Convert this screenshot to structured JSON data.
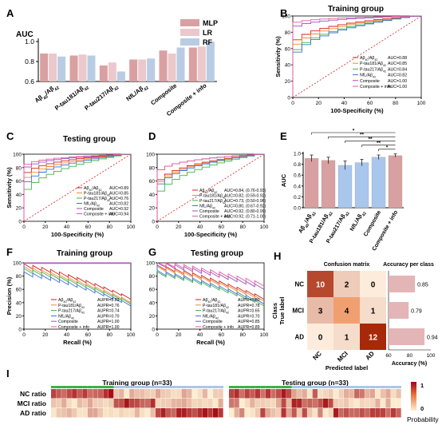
{
  "panels": {
    "A": "A",
    "B": "B",
    "C": "C",
    "D": "D",
    "E": "E",
    "F": "F",
    "G": "G",
    "H": "H",
    "I": "I"
  },
  "colors": {
    "mlp": "#d9a0a2",
    "lr": "#ebc8cb",
    "rf": "#b9cce3",
    "red": "#d81e1e",
    "orange": "#f08a2a",
    "blue": "#3d6fd6",
    "green": "#3cb44b",
    "purple": "#9a4ec4",
    "pink": "#e85c9b",
    "darkred": "#b3001b",
    "lightblue": "#a9c6ec",
    "greenbar": "#3fae49"
  },
  "chart_data": [
    {
      "id": "A",
      "type": "bar",
      "ylabel": "AUC",
      "ylim": [
        0.6,
        1.0
      ],
      "yticks": [
        "0.6",
        "0.8",
        "1.0"
      ],
      "categories": [
        "Aβ40/Aβ42",
        "P-tau181/Aβ42",
        "P-tau217/Aβ42",
        "NfL/Aβ42",
        "Composite",
        "Composite + info"
      ],
      "series": [
        {
          "name": "MLP",
          "values": [
            0.88,
            0.86,
            0.76,
            0.82,
            0.91,
            0.94
          ]
        },
        {
          "name": "LR",
          "values": [
            0.88,
            0.87,
            0.79,
            0.82,
            0.88,
            0.95
          ]
        },
        {
          "name": "RF",
          "values": [
            0.85,
            0.86,
            0.7,
            0.83,
            0.94,
            1.0
          ]
        }
      ]
    },
    {
      "id": "B",
      "type": "line",
      "title": "Training group",
      "xlabel": "100-Specificity (%)",
      "ylabel": "Sensitivity (%)",
      "xticks": [
        "0",
        "20",
        "40",
        "60",
        "80",
        "100"
      ],
      "yticks": [
        "0",
        "20",
        "40",
        "60",
        "80",
        "100"
      ],
      "legend": [
        {
          "label": "Aβ40/Aβ42",
          "value": "AUC=0.88"
        },
        {
          "label": "P-tau181/Aβ42",
          "value": "AUC=0.85"
        },
        {
          "label": "P-tau217/Aβ42",
          "value": "AUC=0.84"
        },
        {
          "label": "NfL/Aβ42",
          "value": "AUC=0.82"
        },
        {
          "label": "Composite",
          "value": "AUC=1.00"
        },
        {
          "label": "Composite + info",
          "value": "AUC=1.00"
        }
      ]
    },
    {
      "id": "C",
      "type": "line",
      "title": "Testing group",
      "xlabel": "100-Specificity (%)",
      "ylabel": "Sensitivity (%)",
      "xticks": [
        "0",
        "20",
        "40",
        "60",
        "80",
        "100"
      ],
      "yticks": [
        "0",
        "20",
        "40",
        "60",
        "80",
        "100"
      ],
      "legend": [
        {
          "label": "Aβ40/Aβ42",
          "value": "AUC=0.89"
        },
        {
          "label": "P-tau181/Aβ42",
          "value": "AUC=0.85"
        },
        {
          "label": "P-tau217/Aβ42",
          "value": "AUC=0.76"
        },
        {
          "label": "NfL/Aβ42",
          "value": "AUC=0.82"
        },
        {
          "label": "Composite",
          "value": "AUC=0.92"
        },
        {
          "label": "Composite + info",
          "value": "AUC=0.94"
        }
      ]
    },
    {
      "id": "D",
      "type": "line",
      "xlabel": "100-Specificity (%)",
      "ylabel": "",
      "xticks": [
        "0",
        "20",
        "40",
        "60",
        "80",
        "100"
      ],
      "yticks": [
        "0",
        "20",
        "40",
        "60",
        "80",
        "100"
      ],
      "legend": [
        {
          "label": "Aβ40/Aβ42",
          "value": "AUC=0.84, (0.76-0.93)"
        },
        {
          "label": "P-tau181/Aβ42",
          "value": "AUC=0.82, (0.59-0.92)"
        },
        {
          "label": "P-tau217/Aβ42",
          "value": "AUC=0.73, (0.50-0.96)"
        },
        {
          "label": "NfL/Aβ42",
          "value": "AUC=0.80, (0.67-0.92)"
        },
        {
          "label": "Composite",
          "value": "AUC=0.92, (0.80-0.99)"
        },
        {
          "label": "Composite + info",
          "value": "AUC=0.92, (0.71-1.00)"
        }
      ]
    },
    {
      "id": "E",
      "type": "bar",
      "ylabel": "AUC",
      "ylim": [
        0.0,
        1.0
      ],
      "yticks": [
        "0.0",
        "0.2",
        "0.4",
        "0.6",
        "0.8",
        "1.0"
      ],
      "categories": [
        "Aβ40/Aβ42",
        "P-tau181/Aβ42",
        "P-tau217/Aβ42",
        "NfL/Aβ42",
        "Composite",
        "Composite + info"
      ],
      "values": [
        0.91,
        0.87,
        0.78,
        0.83,
        0.93,
        0.96
      ],
      "errors": [
        0.06,
        0.06,
        0.08,
        0.06,
        0.04,
        0.03
      ],
      "significance": [
        "*",
        "**",
        "**",
        "**",
        "*"
      ]
    },
    {
      "id": "F",
      "type": "line",
      "title": "Training group",
      "xlabel": "Recall (%)",
      "ylabel": "Precision (%)",
      "xticks": [
        "0",
        "20",
        "40",
        "60",
        "80",
        "100"
      ],
      "yticks": [
        "0",
        "20",
        "40",
        "60",
        "80",
        "100"
      ],
      "legend": [
        {
          "label": "Aβ40/Aβ42",
          "value": "AUPR=0.83"
        },
        {
          "label": "P-tau181/Aβ42",
          "value": "AUPR=0.76"
        },
        {
          "label": "P-tau217/Aβ42",
          "value": "AUPR=0.74"
        },
        {
          "label": "NfL/Aβ42",
          "value": "AUPR=0.70"
        },
        {
          "label": "Composite",
          "value": "AUPR=1.00"
        },
        {
          "label": "Composite + info",
          "value": "AUPR=1.00"
        }
      ]
    },
    {
      "id": "G",
      "type": "line",
      "title": "Testing group",
      "xlabel": "Recall (%)",
      "ylabel": "",
      "xticks": [
        "0",
        "20",
        "40",
        "60",
        "80",
        "100"
      ],
      "yticks": [
        "0",
        "20",
        "40",
        "60",
        "80",
        "100"
      ],
      "legend": [
        {
          "label": "Aβ40/Aβ42",
          "value": "AUPR=0.80"
        },
        {
          "label": "P-tau181/Aβ42",
          "value": "AUPR=0.78"
        },
        {
          "label": "P-tau217/Aβ42",
          "value": "AUPR=0.65"
        },
        {
          "label": "NfL/Aβ42",
          "value": "AUPR=0.70"
        },
        {
          "label": "Composite",
          "value": "AUPR=0.85"
        },
        {
          "label": "Composite + info",
          "value": "AUPR=0.89"
        }
      ]
    },
    {
      "id": "H",
      "type": "heatmap",
      "title": "Confusion matrix",
      "xlabel": "Predicted label",
      "ylabel": "True label",
      "class_label": "Class",
      "rows": [
        "NC",
        "MCI",
        "AD"
      ],
      "cols": [
        "NC",
        "MCI",
        "AD"
      ],
      "matrix": [
        [
          10,
          2,
          0
        ],
        [
          3,
          4,
          1
        ],
        [
          0,
          1,
          12
        ]
      ],
      "side": {
        "title": "Accuracy per class",
        "xlabel": "Accuracy (%)",
        "xticks": [
          "60",
          "80",
          "100"
        ],
        "values": [
          0.85,
          0.79,
          0.94
        ],
        "labels": [
          "0.85",
          "0.79",
          "0.94"
        ]
      }
    },
    {
      "id": "I",
      "type": "heatmap",
      "rows": [
        "NC ratio",
        "MCI ratio",
        "AD ratio"
      ],
      "groups": [
        "Training group (n=33)",
        "Testing group (n=33)"
      ],
      "colorbar": {
        "max": "1",
        "min": "0",
        "label": "Probability"
      }
    }
  ]
}
